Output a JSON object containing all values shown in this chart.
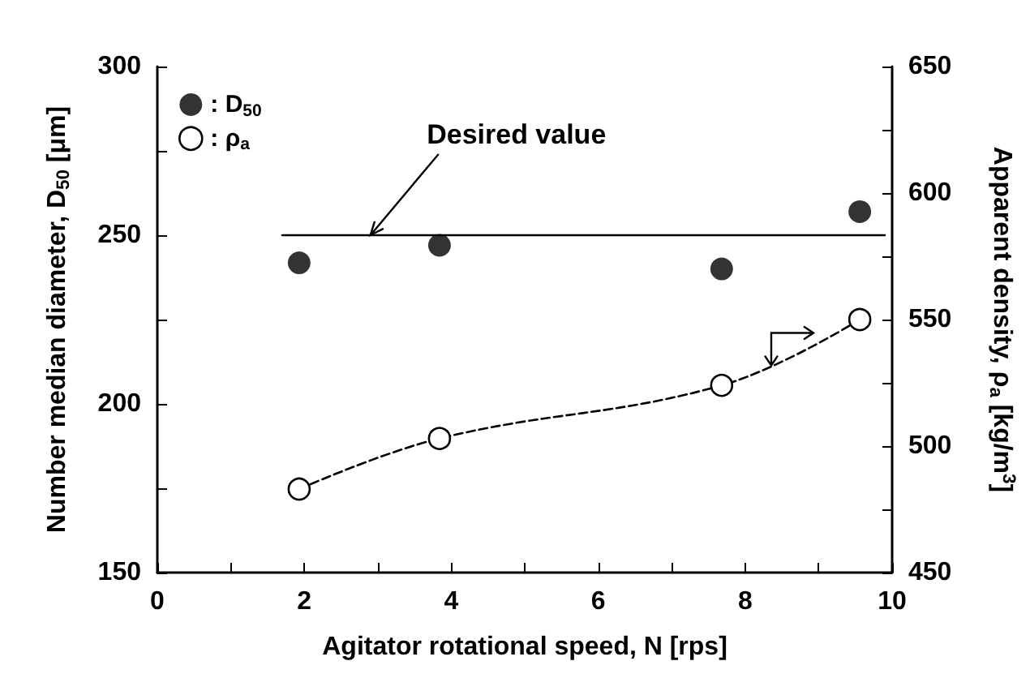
{
  "chart_data": {
    "type": "scatter",
    "xlabel": "Agitator rotational speed, N [rps]",
    "ylabel": "Number median diameter, D$_{50}$ [μm]",
    "y2label": "Apparent density, ρ$_{a}$ [kg/m$^{3}$]",
    "xlim": [
      0,
      10
    ],
    "xticks": [
      0,
      {
        "value": 1,
        "label": null
      },
      2,
      {
        "value": 3,
        "label": null
      },
      4,
      {
        "value": 5,
        "label": null
      },
      6,
      {
        "value": 7,
        "label": null
      },
      8,
      {
        "value": 9,
        "label": null
      },
      10
    ],
    "ylim": [
      150,
      300
    ],
    "yticks": [
      150,
      {
        "value": 175,
        "label": null
      },
      200,
      {
        "value": 225,
        "label": null
      },
      250,
      {
        "value": 275,
        "label": null
      },
      300
    ],
    "y2lim": [
      450,
      650
    ],
    "y2ticks": [
      450,
      {
        "value": 475,
        "label": null
      },
      500,
      {
        "value": 525,
        "label": null
      },
      550,
      {
        "value": 575,
        "label": null
      },
      600,
      {
        "value": 625,
        "label": null
      },
      650
    ],
    "series": [
      {
        "name": ": D$_{50}$",
        "color": "#000000",
        "marker": "circle",
        "x": [
          1.93,
          3.84,
          7.68,
          9.56
        ],
        "values": [
          241.8,
          247,
          240,
          257
        ]
      },
      {
        "name": ": ρ$_{a}$",
        "type": "line",
        "axis": "y2",
        "color": "#000000",
        "marker": "circle",
        "line_style": "dashed",
        "x": [
          1.93,
          3.84,
          7.68,
          9.56
        ],
        "values": [
          483,
          503,
          524,
          550
        ]
      },
      {
        "type": "line",
        "color": "#000000",
        "marker": "none",
        "line_style": "solid",
        "x": [
          1.7,
          9.9
        ],
        "values": [
          250,
          250
        ]
      }
    ],
    "annotations": [
      {
        "text": "Desired value",
        "x": 2.9,
        "y": 250
      }
    ],
    "legend": "top left",
    "grid": false
  }
}
